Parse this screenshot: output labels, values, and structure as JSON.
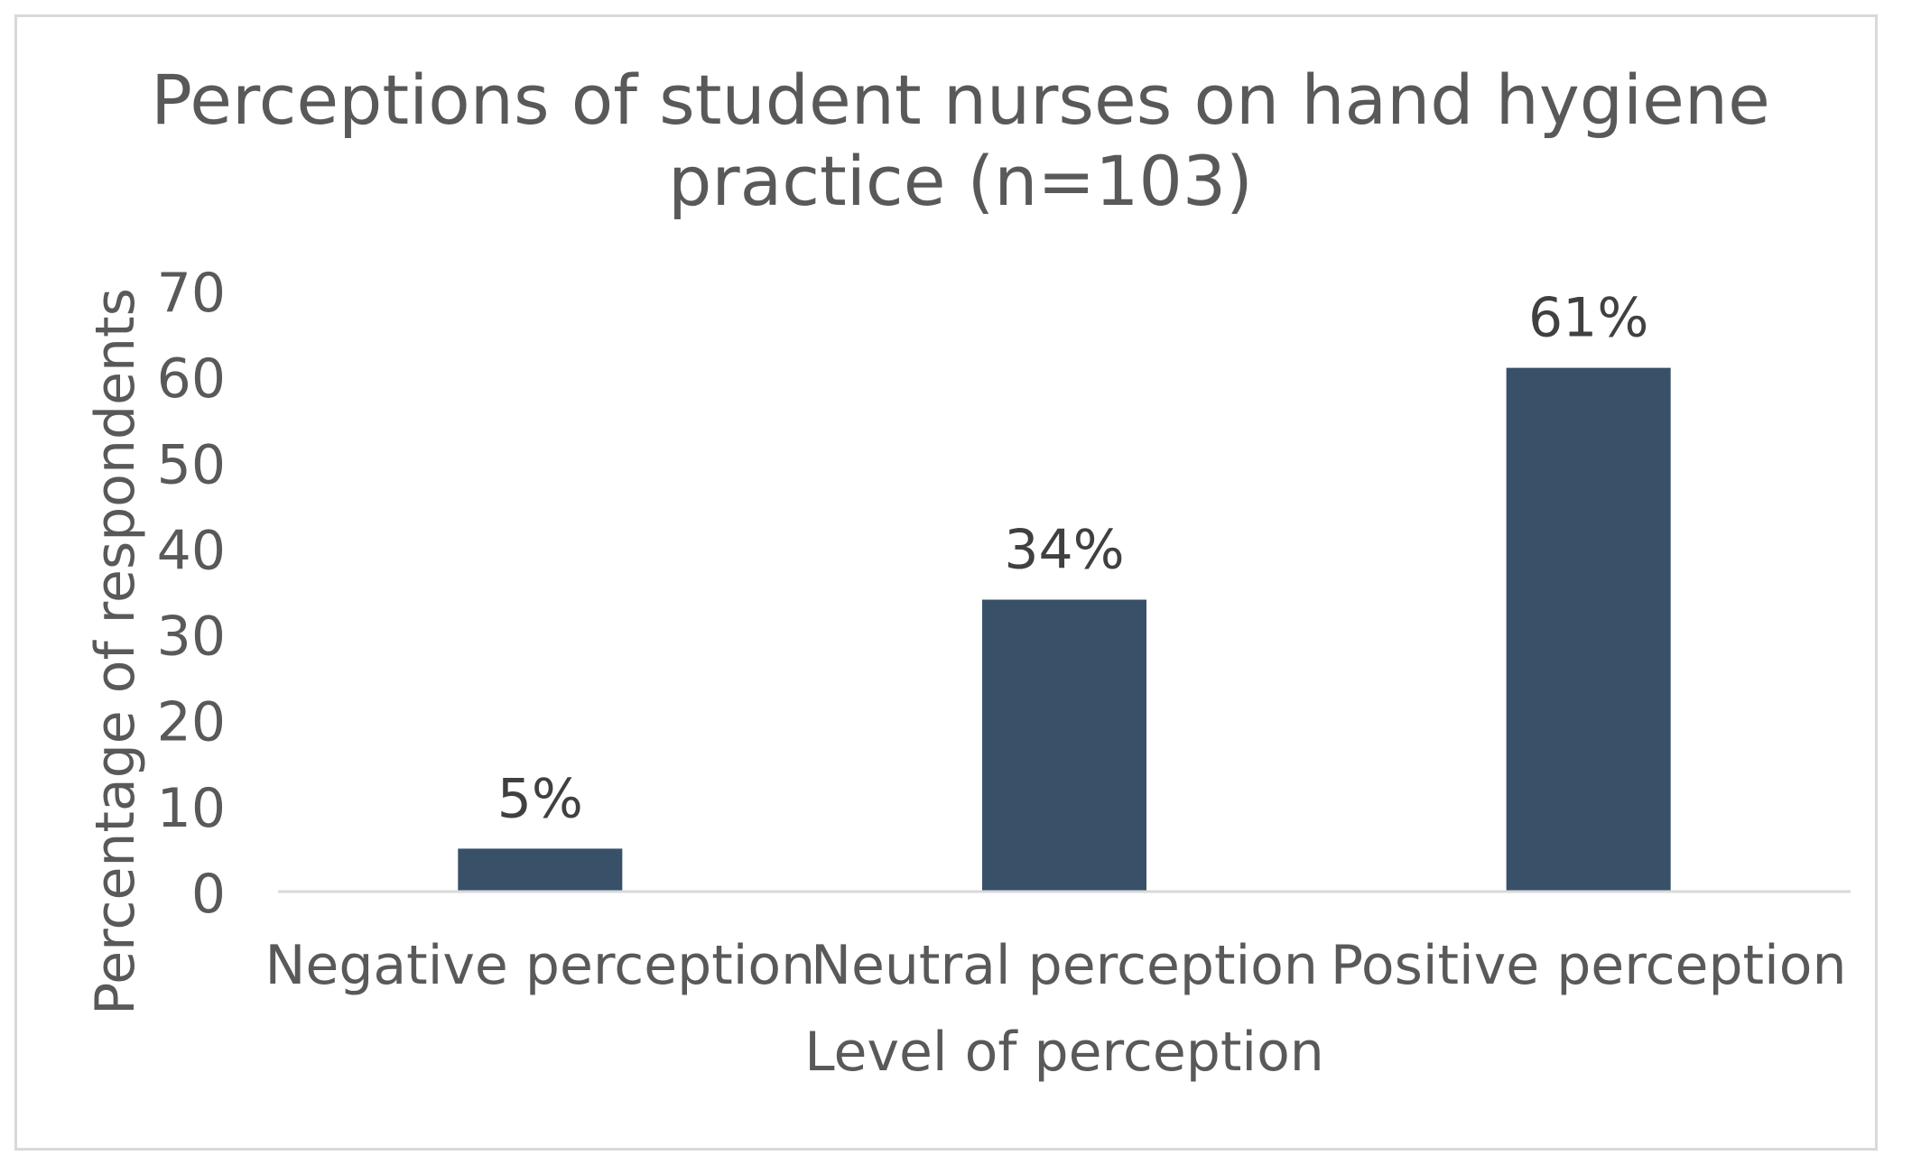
{
  "chart_data": {
    "type": "bar",
    "title_lines": [
      "Perceptions of student nurses on hand hygiene",
      "practice (n=103)"
    ],
    "xlabel": "Level of perception",
    "ylabel": "Percentage of respondents",
    "categories": [
      "Negative perception",
      "Neutral perception",
      "Positive perception"
    ],
    "values": [
      5,
      34,
      61
    ],
    "data_labels": [
      "5%",
      "34%",
      "61%"
    ],
    "ylim": [
      0,
      70
    ],
    "yticks": [
      0,
      10,
      20,
      30,
      40,
      50,
      60,
      70
    ],
    "grid": false,
    "legend": "none",
    "bar_color": "#385068",
    "text_color": "#595959",
    "label_color": "#404040",
    "axis_color": "#d9d9d9"
  }
}
